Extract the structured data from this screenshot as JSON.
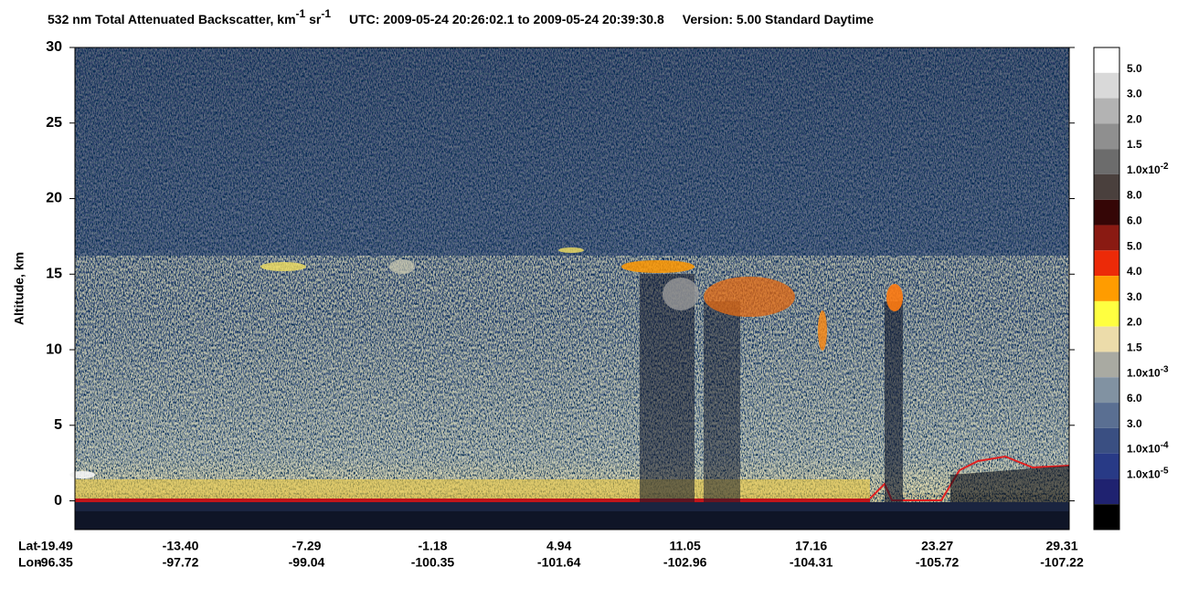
{
  "chart_data": {
    "type": "curtain",
    "title": {
      "main": "532 nm Total Attenuated Backscatter, km",
      "exp1": "-1",
      "mid": " sr",
      "exp2": "-1",
      "utc": "UTC:  2009-05-24 20:26:02.1  to  2009-05-24 20:39:30.8",
      "version": "Version: 5.00  Standard  Daytime"
    },
    "ylabel": "Altitude, km",
    "ylim": [
      -1.9,
      30
    ],
    "yticks": [
      0,
      5,
      10,
      15,
      20,
      25,
      30
    ],
    "xlim": [
      -19.49,
      29.31
    ],
    "xrow_labels": [
      "Lat",
      "Lon"
    ],
    "xticks": [
      -19.49,
      {
        "value": -13.4,
        "label": "-13.40"
      },
      -7.29,
      -1.18,
      4.94,
      11.05,
      17.16,
      23.27,
      29.31
    ],
    "lon_labels": [
      "-96.35",
      "-97.72",
      "-99.04",
      "-100.35",
      "-101.64",
      "-102.96",
      "-104.31",
      "-105.72",
      "-107.22"
    ],
    "colorbar": {
      "colors": [
        "#ffffff",
        "#d9d9d9",
        "#b3b3b3",
        "#8f8f8f",
        "#6c6c6c",
        "#4a403d",
        "#350606",
        "#8a1a12",
        "#ec2a08",
        "#ff9c00",
        "#ffff40",
        "#ecdcaa",
        "#a9aaa2",
        "#8192a2",
        "#5a6f92",
        "#3a4f82",
        "#283a86",
        "#1f2270",
        "#000000"
      ],
      "labels": [
        {
          "text": "5.0"
        },
        {
          "text": "3.0"
        },
        {
          "text": "2.0"
        },
        {
          "text": "1.5"
        },
        {
          "text": "1.0x10",
          "sup": "-2"
        },
        {
          "text": "8.0"
        },
        {
          "text": "6.0"
        },
        {
          "text": "5.0"
        },
        {
          "text": "4.0"
        },
        {
          "text": "3.0"
        },
        {
          "text": "2.0"
        },
        {
          "text": "1.5"
        },
        {
          "text": "1.0x10",
          "sup": "-3"
        },
        {
          "text": "6.0"
        },
        {
          "text": "3.0"
        },
        {
          "text": "1.0x10",
          "sup": "-4"
        },
        {
          "text": "1.0x10",
          "sup": "-5"
        }
      ]
    }
  }
}
